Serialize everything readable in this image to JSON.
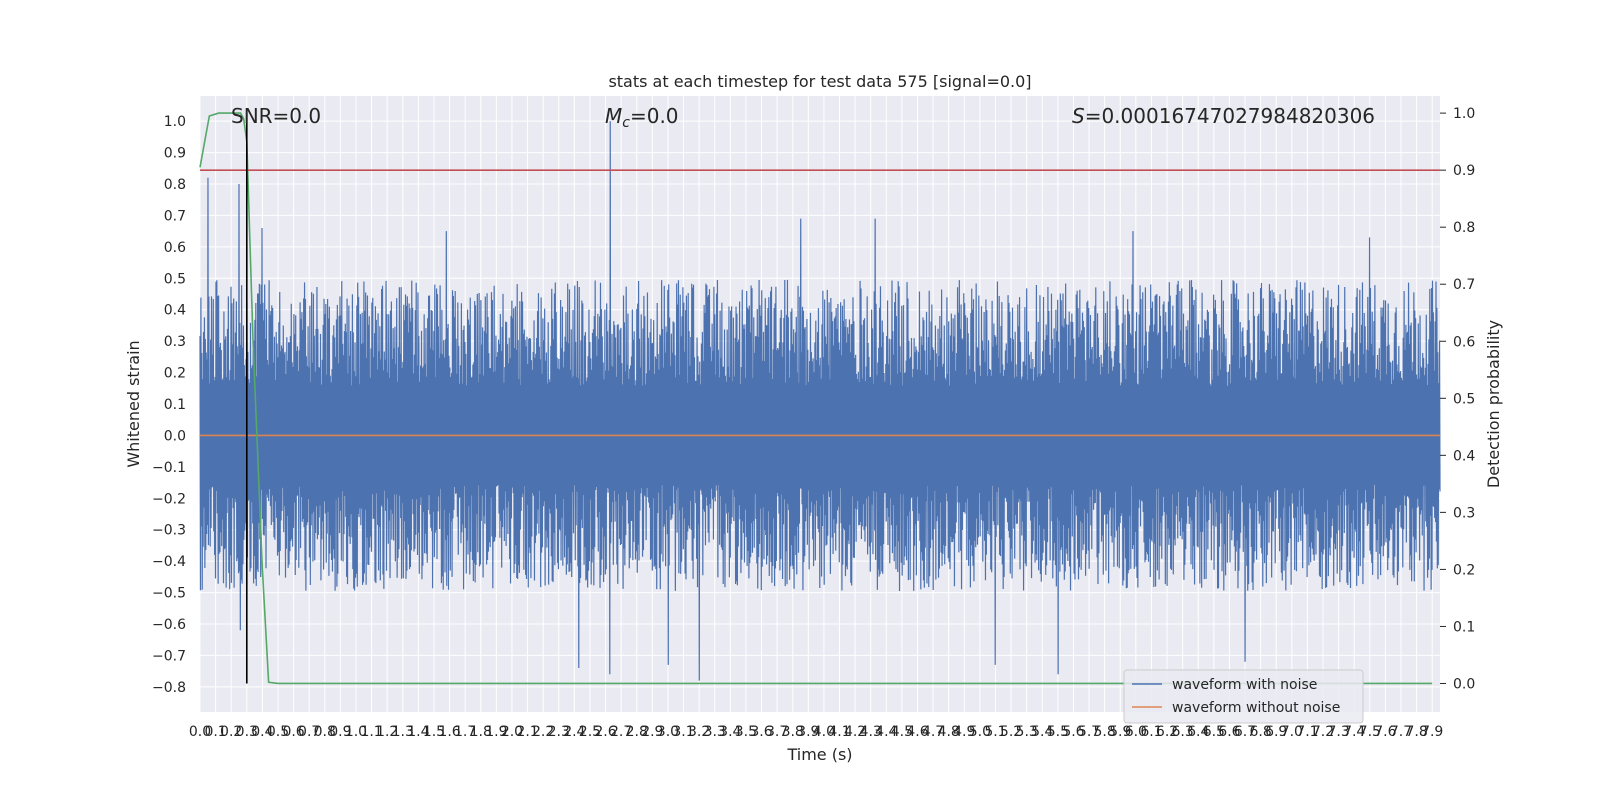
{
  "chart_data": {
    "type": "line",
    "title": "stats at each timestep for test data 575 [signal=0.0]",
    "xlabel": "Time (s)",
    "ylabel": "Whitened strain",
    "y2label": "Detection probability",
    "xlim": [
      0.0,
      7.95
    ],
    "ylim": [
      -0.88,
      1.08
    ],
    "y2lim": [
      -0.05,
      1.03
    ],
    "x_ticks": [
      0.0,
      0.1,
      0.2,
      0.3,
      0.4,
      0.5,
      0.6,
      0.7,
      0.8,
      0.9,
      1.0,
      1.1,
      1.2,
      1.3,
      1.4,
      1.5,
      1.6,
      1.7,
      1.8,
      1.9,
      2.0,
      2.1,
      2.2,
      2.3,
      2.4,
      2.5,
      2.6,
      2.7,
      2.8,
      2.9,
      3.0,
      3.1,
      3.2,
      3.3,
      3.4,
      3.5,
      3.6,
      3.7,
      3.8,
      3.9,
      4.0,
      4.1,
      4.2,
      4.3,
      4.4,
      4.5,
      4.6,
      4.7,
      4.8,
      4.9,
      5.0,
      5.1,
      5.2,
      5.3,
      5.4,
      5.5,
      5.6,
      5.7,
      5.8,
      5.9,
      6.0,
      6.1,
      6.2,
      6.3,
      6.4,
      6.5,
      6.6,
      6.7,
      6.8,
      6.9,
      7.0,
      7.1,
      7.2,
      7.3,
      7.4,
      7.5,
      7.6,
      7.7,
      7.8,
      7.9
    ],
    "x_tick_labels": [
      "0.0",
      "0.1",
      "0.2",
      "0.3",
      "0.4",
      "0.5",
      "0.6",
      "0.7",
      "0.8",
      "0.9",
      "1.0",
      "1.1",
      "1.2",
      "1.3",
      "1.4",
      "1.5",
      "1.6",
      "1.7",
      "1.8",
      "1.9",
      "2.0",
      "2.1",
      "2.2",
      "2.3",
      "2.4",
      "2.5",
      "2.6",
      "2.7",
      "2.8",
      "2.9",
      "3.0",
      "3.1",
      "3.2",
      "3.3",
      "3.4",
      "3.5",
      "3.6",
      "3.7",
      "3.8",
      "3.9",
      "4.0",
      "4.1",
      "4.2",
      "4.3",
      "4.4",
      "4.5",
      "4.6",
      "4.7",
      "4.8",
      "4.9",
      "5.0",
      "5.1",
      "5.2",
      "5.3",
      "5.4",
      "5.5",
      "5.6",
      "5.7",
      "5.8",
      "5.9",
      "6.0",
      "6.1",
      "6.2",
      "6.3",
      "6.4",
      "6.5",
      "6.6",
      "6.7",
      "6.8",
      "6.9",
      "7.0",
      "7.1",
      "7.2",
      "7.3",
      "7.4",
      "7.5",
      "7.6",
      "7.7",
      "7.8",
      "7.9"
    ],
    "y_ticks": [
      -0.8,
      -0.7,
      -0.6,
      -0.5,
      -0.4,
      -0.3,
      -0.2,
      -0.1,
      0.0,
      0.1,
      0.2,
      0.3,
      0.4,
      0.5,
      0.6,
      0.7,
      0.8,
      0.9,
      1.0
    ],
    "y_tick_labels": [
      "−0.8",
      "−0.7",
      "−0.6",
      "−0.5",
      "−0.4",
      "−0.3",
      "−0.2",
      "−0.1",
      "0.0",
      "0.1",
      "0.2",
      "0.3",
      "0.4",
      "0.5",
      "0.6",
      "0.7",
      "0.8",
      "0.9",
      "1.0"
    ],
    "y2_ticks": [
      0.0,
      0.1,
      0.2,
      0.3,
      0.4,
      0.5,
      0.6,
      0.7,
      0.8,
      0.9,
      1.0
    ],
    "y2_tick_labels": [
      "0.0",
      "0.1",
      "0.2",
      "0.3",
      "0.4",
      "0.5",
      "0.6",
      "0.7",
      "0.8",
      "0.9",
      "1.0"
    ],
    "grid": true,
    "legend_placement": "lower-right",
    "annotations": {
      "snr": "SNR=0.0",
      "mc_symbol": "M",
      "mc_sub": "c",
      "mc_value": "=0.0",
      "s_symbol": "S",
      "s_value": "=0.00016747027984820306"
    },
    "series": [
      {
        "name": "waveform with noise",
        "axis": "left",
        "color": "#4c72b0",
        "envelope_upper_typical": 0.45,
        "envelope_lower_typical": -0.45,
        "spikes": [
          {
            "x": 0.05,
            "y": 0.82
          },
          {
            "x": 0.25,
            "y": 0.8
          },
          {
            "x": 2.63,
            "y": 1.0
          },
          {
            "x": 3.2,
            "y": -0.78
          },
          {
            "x": 6.7,
            "y": -0.72
          },
          {
            "x": 5.1,
            "y": -0.73
          },
          {
            "x": 5.5,
            "y": -0.76
          },
          {
            "x": 2.43,
            "y": -0.74
          },
          {
            "x": 2.63,
            "y": -0.76
          },
          {
            "x": 3.0,
            "y": -0.73
          },
          {
            "x": 0.4,
            "y": 0.66
          },
          {
            "x": 1.58,
            "y": 0.65
          },
          {
            "x": 4.33,
            "y": 0.69
          },
          {
            "x": 3.85,
            "y": 0.69
          },
          {
            "x": 5.98,
            "y": 0.65
          },
          {
            "x": 7.5,
            "y": 0.63
          },
          {
            "x": 0.26,
            "y": -0.62
          }
        ]
      },
      {
        "name": "waveform without noise",
        "axis": "left",
        "color": "#dd8452",
        "x": [
          0.0,
          7.95
        ],
        "y": [
          0.0,
          0.0
        ]
      },
      {
        "name": "detection probability",
        "axis": "right",
        "color": "#55a868",
        "x": [
          0.0,
          0.06,
          0.12,
          0.2,
          0.26,
          0.28,
          0.3,
          0.34,
          0.4,
          0.44,
          0.5,
          7.9
        ],
        "y": [
          0.905,
          0.995,
          1.0,
          1.0,
          1.0,
          0.99,
          0.95,
          0.6,
          0.2,
          0.002,
          0.0,
          0.0
        ]
      },
      {
        "name": "threshold",
        "axis": "right",
        "color": "#c44e52",
        "x": [
          0.0,
          7.95
        ],
        "y": [
          0.9,
          0.9
        ]
      },
      {
        "name": "trigger",
        "axis": "right",
        "color": "#000000",
        "x": [
          0.3,
          0.3
        ],
        "y": [
          0.0,
          1.0
        ]
      }
    ]
  }
}
